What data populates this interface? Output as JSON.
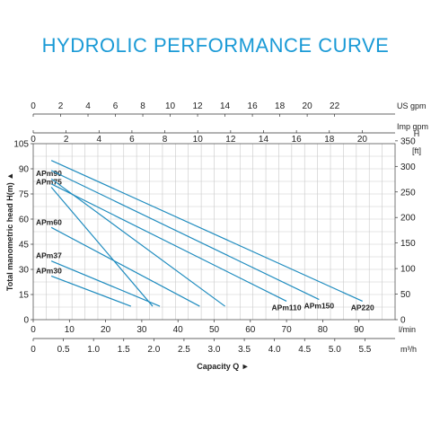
{
  "chart_data": {
    "type": "line",
    "title": "HYDROLIC PERFORMANCE CURVE",
    "xlabel": "Capacity Q",
    "ylabel": "Total manometric head H(m)",
    "ylim": [
      0,
      105
    ],
    "y_ticks": [
      0,
      15,
      30,
      45,
      60,
      75,
      90,
      105
    ],
    "xlim_lmin": [
      0,
      100
    ],
    "x_ticks_lmin": [
      0,
      10,
      20,
      30,
      40,
      50,
      60,
      70,
      80,
      90
    ],
    "x_unit_lmin": "l/min",
    "x_ticks_m3h": [
      "0",
      "0.5",
      "1.0",
      "1.5",
      "2.0",
      "2.5",
      "3.0",
      "3.5",
      "4.0",
      "4.5",
      "5.0",
      "5.5"
    ],
    "x_unit_m3h": "m³/h",
    "x_ticks_usgpm": [
      "0",
      "2",
      "4",
      "6",
      "8",
      "10",
      "12",
      "14",
      "16",
      "18",
      "20",
      "22"
    ],
    "x_unit_usgpm": "US gpm",
    "x_ticks_impgpm": [
      "0",
      "2",
      "4",
      "6",
      "8",
      "10",
      "12",
      "14",
      "16",
      "18",
      "20"
    ],
    "x_unit_impgpm": "Imp gpm",
    "y2_unit": "H",
    "y2_unit2": "[ft]",
    "y2_ticks": [
      "0",
      "50",
      "100",
      "150",
      "200",
      "250",
      "300",
      "350"
    ],
    "grid": true,
    "series": [
      {
        "name": "APm30",
        "label_pos": "left",
        "x": [
          5,
          27
        ],
        "y": [
          26,
          8
        ]
      },
      {
        "name": "APm37",
        "label_pos": "left",
        "x": [
          5,
          35
        ],
        "y": [
          35,
          8
        ]
      },
      {
        "name": "APm60",
        "label_pos": "left",
        "x": [
          5,
          46
        ],
        "y": [
          55,
          8
        ]
      },
      {
        "name": "APm75",
        "label_pos": "left",
        "x": [
          5,
          33
        ],
        "y": [
          79,
          8
        ]
      },
      {
        "name": "APm90",
        "label_pos": "left",
        "x": [
          5,
          53
        ],
        "y": [
          84,
          8
        ]
      },
      {
        "name": "APm110",
        "label_pos": "right",
        "x": [
          5,
          70
        ],
        "y": [
          81,
          11
        ]
      },
      {
        "name": "APm150",
        "label_pos": "right",
        "x": [
          5,
          79
        ],
        "y": [
          89,
          12
        ]
      },
      {
        "name": "AP220",
        "label_pos": "right",
        "x": [
          5,
          91
        ],
        "y": [
          95,
          11
        ]
      }
    ],
    "color": "#1f8cbf"
  }
}
